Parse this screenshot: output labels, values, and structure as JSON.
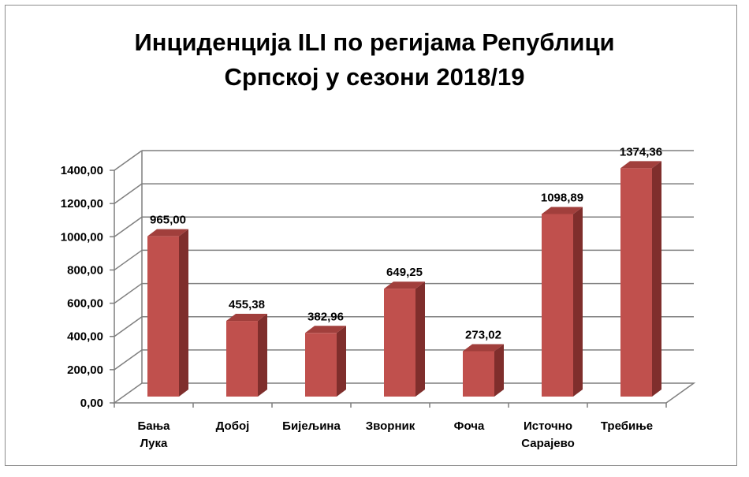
{
  "chart_data": {
    "type": "bar",
    "title_lines": [
      "Инциденција ILI по регијама Републици",
      "Српској у сезони 2018/19"
    ],
    "categories": [
      [
        "Бања",
        "Лука"
      ],
      [
        "Добој"
      ],
      [
        "Бијељина"
      ],
      [
        "Зворник"
      ],
      [
        "Фоча"
      ],
      [
        "Источно",
        "Сарајево"
      ],
      [
        "Требиње"
      ]
    ],
    "values": [
      965.0,
      455.38,
      382.96,
      649.25,
      273.02,
      1098.89,
      1374.36
    ],
    "value_labels": [
      "965,00",
      "455,38",
      "382,96",
      "649,25",
      "273,02",
      "1098,89",
      "1374,36"
    ],
    "y_ticks": [
      "0,00",
      "200,00",
      "400,00",
      "600,00",
      "800,00",
      "1000,00",
      "1200,00",
      "1400,00"
    ],
    "ylim": [
      0,
      1400
    ],
    "grid": true,
    "legend": "none",
    "bar_color": "#c0504d",
    "bar_side_color": "#7f2e2c",
    "bar_top_color": "#a13f3c",
    "grid_color": "#7f7f7f"
  }
}
